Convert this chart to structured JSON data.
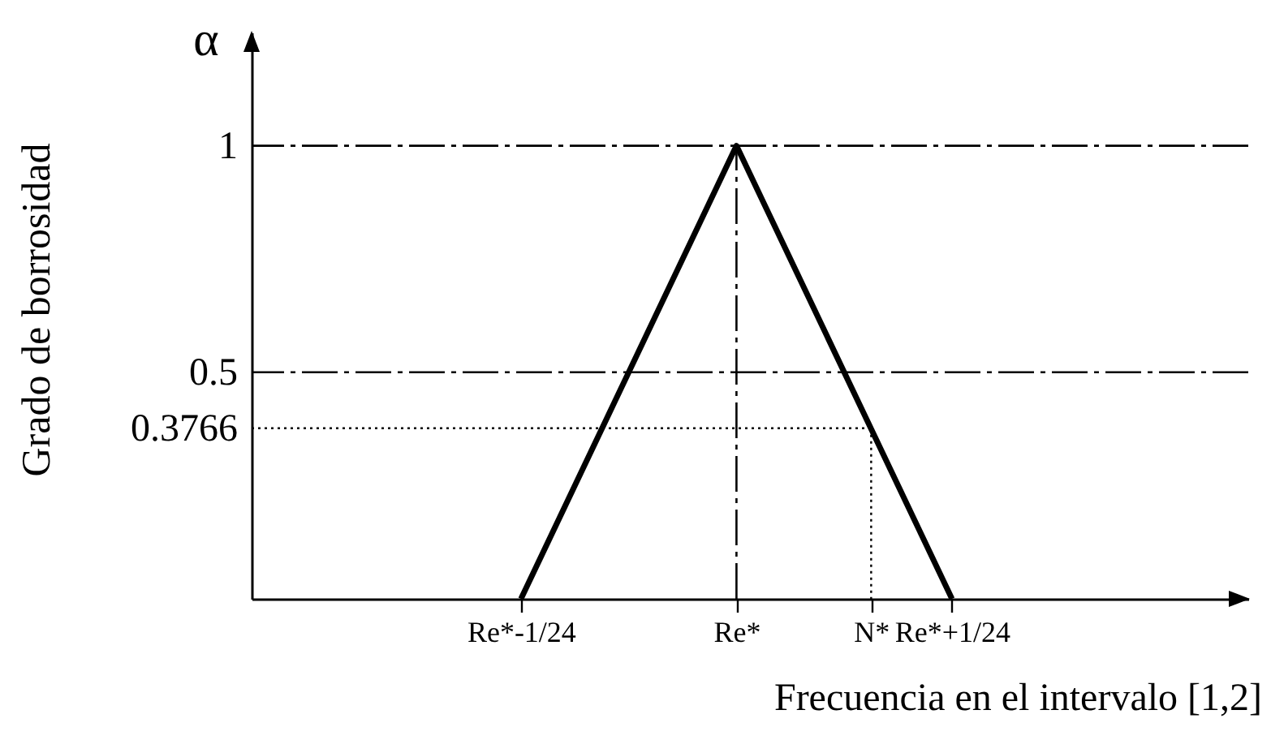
{
  "chart_data": {
    "type": "line",
    "xlabel": "Frecuencia en el intervalo [1,2]",
    "ylabel": "Grado de borrosidad",
    "annotations": [
      "α"
    ],
    "categories": [
      null,
      null,
      null,
      null,
      null,
      null,
      null,
      null,
      null,
      null,
      "Re*-1/24",
      null,
      null,
      null,
      null,
      null,
      null,
      null,
      "Re*",
      null,
      null,
      null,
      null,
      "N*",
      null,
      null,
      "Re*+1/24",
      null,
      null,
      null,
      null,
      null,
      null,
      null,
      null,
      null,
      null,
      null
    ],
    "ylim": [
      0,
      1.25
    ],
    "yticks": [
      0.3766,
      0.5,
      1
    ],
    "line_style": "solid",
    "series": [
      {
        "color": "#000000",
        "x": [
          "Re*-1/24",
          "Re*",
          "Re*+1/24"
        ],
        "values": [
          0,
          1,
          0
        ]
      },
      {
        "color": "#000000",
        "line_style": "dotted",
        "values": [
          0.3766,
          0.3766,
          0.3766,
          0.3766,
          0.3766,
          0.3766,
          0.3766,
          0.3766,
          0.3766,
          0.3766,
          0.3766,
          0.3766,
          0.3766,
          0.3766,
          0.3766,
          0.3766,
          0.3766,
          0.3766,
          0.3766,
          0.3766,
          0.3766,
          0.3766,
          0.3766,
          0.3766,
          null,
          null,
          null,
          null,
          null,
          null,
          null,
          null,
          null,
          null,
          null,
          null,
          null,
          null
        ]
      },
      {
        "color": "#000000",
        "line_style": "dotted",
        "x": [
          "N*",
          "N*"
        ],
        "values": [
          0.3766,
          0
        ]
      }
    ],
    "ref_lines": [
      {
        "axis": "y",
        "value": 1,
        "line_style": "dashdot",
        "color": "#000000"
      },
      {
        "axis": "y",
        "value": 0.5,
        "line_style": "dashdot",
        "color": "#000000"
      },
      {
        "axis": "x",
        "value": "Re*",
        "line_style": "dashdot",
        "color": "#000000"
      }
    ]
  }
}
